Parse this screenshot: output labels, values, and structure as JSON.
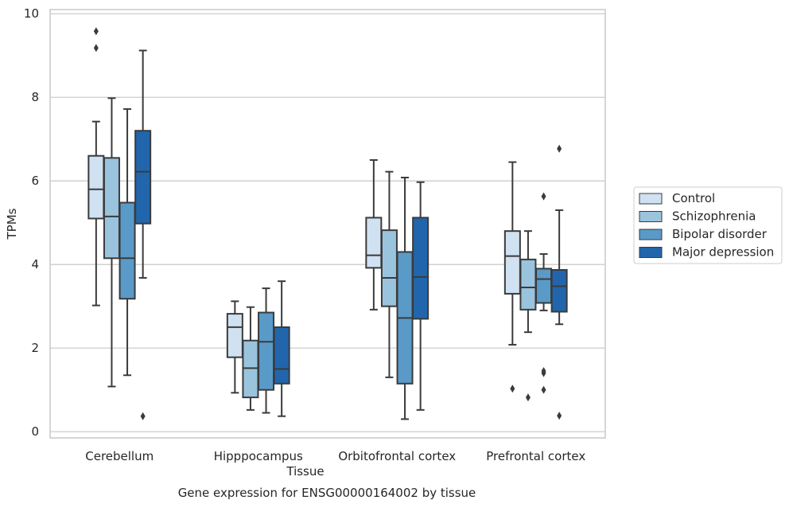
{
  "chart_data": {
    "type": "boxplot",
    "xlabel": "Tissue",
    "ylabel": "TPMs",
    "caption": "Gene expression for ENSG00000164002 by tissue",
    "ylim": [
      -0.15,
      10.1
    ],
    "yticks": [
      0,
      2,
      4,
      6,
      8,
      10
    ],
    "yticks_labels": [
      "0",
      "2",
      "4",
      "6",
      "8",
      "10"
    ],
    "grid": "horizontal",
    "legend_position": "outside-right",
    "categories": [
      "Cerebellum",
      "Hipppocampus",
      "Orbitofrontal cortex",
      "Prefrontal cortex"
    ],
    "series": [
      {
        "name": "Control",
        "color": "#d0e1f2",
        "boxes": [
          {
            "whislo": 3.02,
            "q1": 5.1,
            "med": 5.8,
            "q3": 6.6,
            "whishi": 7.42,
            "fliers": [
              9.58,
              9.18
            ]
          },
          {
            "whislo": 0.93,
            "q1": 1.78,
            "med": 2.5,
            "q3": 2.82,
            "whishi": 3.12,
            "fliers": []
          },
          {
            "whislo": 2.92,
            "q1": 3.92,
            "med": 4.22,
            "q3": 5.12,
            "whishi": 6.5,
            "fliers": []
          },
          {
            "whislo": 2.08,
            "q1": 3.3,
            "med": 4.2,
            "q3": 4.8,
            "whishi": 6.45,
            "fliers": [
              1.03
            ]
          }
        ]
      },
      {
        "name": "Schizophrenia",
        "color": "#9ac4de",
        "boxes": [
          {
            "whislo": 1.08,
            "q1": 4.15,
            "med": 5.15,
            "q3": 6.55,
            "whishi": 7.98,
            "fliers": []
          },
          {
            "whislo": 0.52,
            "q1": 0.82,
            "med": 1.52,
            "q3": 2.18,
            "whishi": 2.98,
            "fliers": []
          },
          {
            "whislo": 1.3,
            "q1": 3.0,
            "med": 3.68,
            "q3": 4.82,
            "whishi": 6.22,
            "fliers": []
          },
          {
            "whislo": 2.38,
            "q1": 2.92,
            "med": 3.45,
            "q3": 4.12,
            "whishi": 4.8,
            "fliers": [
              0.82
            ]
          }
        ]
      },
      {
        "name": "Bipolar disorder",
        "color": "#5a9ac8",
        "boxes": [
          {
            "whislo": 1.35,
            "q1": 3.18,
            "med": 4.15,
            "q3": 5.48,
            "whishi": 7.72,
            "fliers": []
          },
          {
            "whislo": 0.45,
            "q1": 1.0,
            "med": 2.15,
            "q3": 2.85,
            "whishi": 3.43,
            "fliers": []
          },
          {
            "whislo": 0.3,
            "q1": 1.15,
            "med": 2.72,
            "q3": 4.3,
            "whishi": 6.08,
            "fliers": []
          },
          {
            "whislo": 2.9,
            "q1": 3.08,
            "med": 3.65,
            "q3": 3.9,
            "whishi": 4.25,
            "fliers": [
              5.63,
              1.45,
              1.4,
              1.0
            ]
          }
        ]
      },
      {
        "name": "Major depression",
        "color": "#2166ac",
        "boxes": [
          {
            "whislo": 3.68,
            "q1": 4.98,
            "med": 6.22,
            "q3": 7.2,
            "whishi": 9.12,
            "fliers": [
              0.37
            ]
          },
          {
            "whislo": 0.37,
            "q1": 1.15,
            "med": 1.5,
            "q3": 2.5,
            "whishi": 3.6,
            "fliers": []
          },
          {
            "whislo": 0.52,
            "q1": 2.7,
            "med": 3.7,
            "q3": 5.12,
            "whishi": 5.97,
            "fliers": []
          },
          {
            "whislo": 2.57,
            "q1": 2.87,
            "med": 3.48,
            "q3": 3.87,
            "whishi": 5.3,
            "fliers": [
              6.77,
              0.38
            ]
          }
        ]
      }
    ]
  }
}
